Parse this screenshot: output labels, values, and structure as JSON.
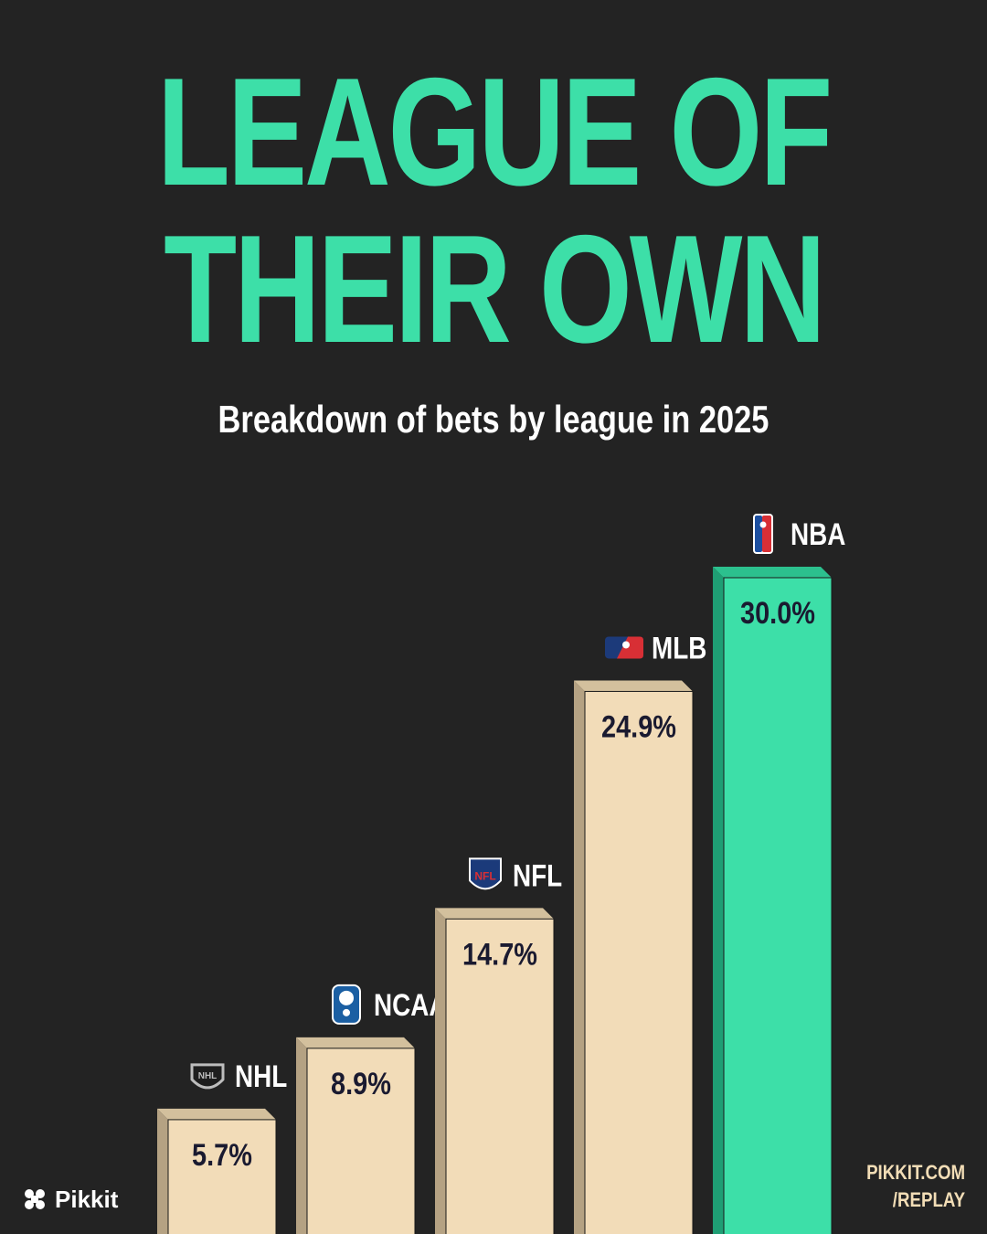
{
  "header": {
    "title_line1": "LEAGUE OF",
    "title_line2": "THEIR OWN",
    "subtitle": "Breakdown of bets by league in 2025"
  },
  "chart_data": {
    "type": "bar",
    "title": "LEAGUE OF THEIR OWN",
    "subtitle": "Breakdown of bets by league in 2025",
    "categories": [
      "NHL",
      "NCAAM",
      "NFL",
      "MLB",
      "NBA"
    ],
    "values": [
      5.7,
      8.9,
      14.7,
      24.9,
      30.0
    ],
    "value_labels": [
      "5.7%",
      "8.9%",
      "14.7%",
      "24.9%",
      "30.0%"
    ],
    "icons": [
      "nhl-logo-icon",
      "ncaa-logo-icon",
      "nfl-logo-icon",
      "mlb-logo-icon",
      "nba-logo-icon"
    ],
    "highlight": "NBA",
    "unit": "%",
    "grid": false,
    "legend": "none",
    "colors": {
      "bar": "#f2dcb8",
      "bar_side": "#b5a283",
      "bar_top": "#d3c09d",
      "highlight": "#3ddfa8",
      "highlight_side": "#1f9e74",
      "highlight_top": "#2cc08e",
      "value_text": "#1a1a30",
      "label_text": "#ffffff"
    }
  },
  "brand": {
    "name": "Pikkit",
    "icon": "clover-icon"
  },
  "footer": {
    "line1": "PIKKIT.COM",
    "line2": "/REPLAY"
  }
}
